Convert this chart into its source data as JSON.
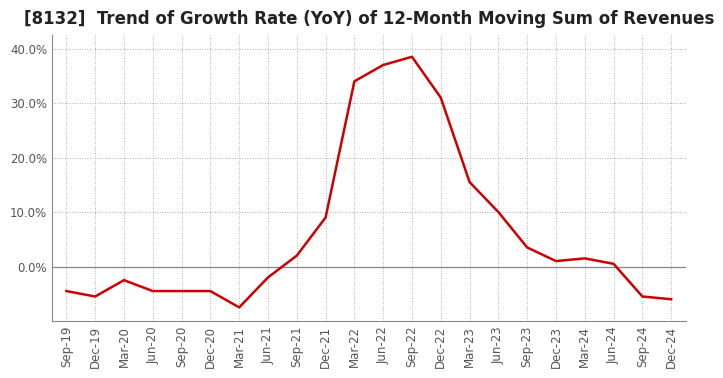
{
  "title": "[8132]  Trend of Growth Rate (YoY) of 12-Month Moving Sum of Revenues",
  "x_labels": [
    "Sep-19",
    "Dec-19",
    "Mar-20",
    "Jun-20",
    "Sep-20",
    "Dec-20",
    "Mar-21",
    "Jun-21",
    "Sep-21",
    "Dec-21",
    "Mar-22",
    "Jun-22",
    "Sep-22",
    "Dec-22",
    "Mar-23",
    "Jun-23",
    "Sep-23",
    "Dec-23",
    "Mar-24",
    "Jun-24",
    "Sep-24",
    "Dec-24"
  ],
  "y_values": [
    -0.045,
    -0.055,
    -0.025,
    -0.045,
    -0.045,
    -0.045,
    -0.075,
    -0.02,
    0.02,
    0.09,
    0.34,
    0.37,
    0.385,
    0.31,
    0.155,
    0.1,
    0.035,
    0.01,
    0.015,
    0.005,
    -0.055,
    -0.06
  ],
  "line_color": "#cc0000",
  "background_color": "#ffffff",
  "plot_background": "#ffffff",
  "grid_color": "#999999",
  "zero_line_color": "#888888",
  "ylim": [
    -0.1,
    0.425
  ],
  "yticks": [
    0.0,
    0.1,
    0.2,
    0.3,
    0.4
  ],
  "title_fontsize": 12,
  "tick_fontsize": 8.5,
  "line_width": 1.8
}
